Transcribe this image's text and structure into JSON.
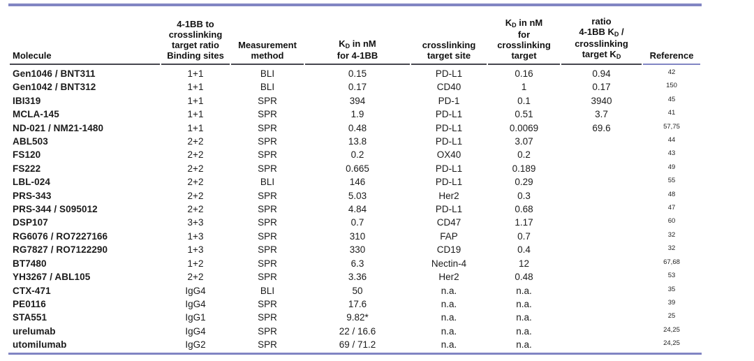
{
  "page": {
    "rule_color": "#8185c3",
    "header_rule_color": "#46464f"
  },
  "table": {
    "headers": {
      "molecule": "Molecule",
      "binding": {
        "lines": [
          "4-1BB to",
          "crosslinking",
          "target ratio",
          "Binding sites"
        ]
      },
      "method": {
        "lines": [
          "Measurement",
          "method"
        ]
      },
      "kd_41bb": {
        "k": "K",
        "sub": "D",
        "rest": " in nM",
        "line2": "for 4-1BB"
      },
      "site": {
        "lines": [
          "crosslinking",
          "target site"
        ]
      },
      "kd_xlink": {
        "k": "K",
        "sub": "D",
        "rest": " in nM",
        "l2": "for",
        "l3": "crosslinking",
        "l4": "target"
      },
      "ratio": {
        "line1": "ratio",
        "line2a": "4-1BB K",
        "line2sub": "D",
        "line2b": " /",
        "line3": "crosslinking",
        "line4a": "target K",
        "line4sub": "D"
      },
      "reference": "Reference"
    },
    "rows": [
      {
        "molecule": "Gen1046 / BNT311",
        "binding": "1+1",
        "method": "BLI",
        "kd_41bb": "0.15",
        "site": "PD-L1",
        "kd_xlink": "0.16",
        "ratio": "0.94",
        "reference": "42"
      },
      {
        "molecule": "Gen1042 / BNT312",
        "binding": "1+1",
        "method": "BLI",
        "kd_41bb": "0.17",
        "site": "CD40",
        "kd_xlink": "1",
        "ratio": "0.17",
        "reference": "150"
      },
      {
        "molecule": "IBI319",
        "binding": "1+1",
        "method": "SPR",
        "kd_41bb": "394",
        "site": "PD-1",
        "kd_xlink": "0.1",
        "ratio": "3940",
        "reference": "45"
      },
      {
        "molecule": "MCLA-145",
        "binding": "1+1",
        "method": "SPR",
        "kd_41bb": "1.9",
        "site": "PD-L1",
        "kd_xlink": "0.51",
        "ratio": "3.7",
        "reference": "41"
      },
      {
        "molecule": "ND-021 / NM21-1480",
        "binding": "1+1",
        "method": "SPR",
        "kd_41bb": "0.48",
        "site": "PD-L1",
        "kd_xlink": "0.0069",
        "ratio": "69.6",
        "reference": "57,75"
      },
      {
        "molecule": "ABL503",
        "binding": "2+2",
        "method": "SPR",
        "kd_41bb": "13.8",
        "site": "PD-L1",
        "kd_xlink": "3.07",
        "ratio": "",
        "reference": "44"
      },
      {
        "molecule": "FS120",
        "binding": "2+2",
        "method": "SPR",
        "kd_41bb": "0.2",
        "site": "OX40",
        "kd_xlink": "0.2",
        "ratio": "",
        "reference": "43"
      },
      {
        "molecule": "FS222",
        "binding": "2+2",
        "method": "SPR",
        "kd_41bb": "0.665",
        "site": "PD-L1",
        "kd_xlink": "0.189",
        "ratio": "",
        "reference": "49"
      },
      {
        "molecule": "LBL-024",
        "binding": "2+2",
        "method": "BLI",
        "kd_41bb": "146",
        "site": "PD-L1",
        "kd_xlink": "0.29",
        "ratio": "",
        "reference": "55"
      },
      {
        "molecule": "PRS-343",
        "binding": "2+2",
        "method": "SPR",
        "kd_41bb": "5.03",
        "site": "Her2",
        "kd_xlink": "0.3",
        "ratio": "",
        "reference": "48"
      },
      {
        "molecule": "PRS-344 / S095012",
        "binding": "2+2",
        "method": "SPR",
        "kd_41bb": "4.84",
        "site": "PD-L1",
        "kd_xlink": "0.68",
        "ratio": "",
        "reference": "47"
      },
      {
        "molecule": "DSP107",
        "binding": "3+3",
        "method": "SPR",
        "kd_41bb": "0.7",
        "site": "CD47",
        "kd_xlink": "1.17",
        "ratio": "",
        "reference": "60"
      },
      {
        "molecule": "RG6076 / RO7227166",
        "binding": "1+3",
        "method": "SPR",
        "kd_41bb": "310",
        "site": "FAP",
        "kd_xlink": "0.7",
        "ratio": "",
        "reference": "32"
      },
      {
        "molecule": "RG7827 / RO7122290",
        "binding": "1+3",
        "method": "SPR",
        "kd_41bb": "330",
        "site": "CD19",
        "kd_xlink": "0.4",
        "ratio": "",
        "reference": "32"
      },
      {
        "molecule": "BT7480",
        "binding": "1+2",
        "method": "SPR",
        "kd_41bb": "6.3",
        "site": "Nectin-4",
        "kd_xlink": "12",
        "ratio": "",
        "reference": "67,68"
      },
      {
        "molecule": "YH3267 / ABL105",
        "binding": "2+2",
        "method": "SPR",
        "kd_41bb": "3.36",
        "site": "Her2",
        "kd_xlink": "0.48",
        "ratio": "",
        "reference": "53"
      },
      {
        "molecule": "CTX-471",
        "binding": "IgG4",
        "method": "BLI",
        "kd_41bb": "50",
        "site": "n.a.",
        "kd_xlink": "n.a.",
        "ratio": "",
        "reference": "35"
      },
      {
        "molecule": "PE0116",
        "binding": "IgG4",
        "method": "SPR",
        "kd_41bb": "17.6",
        "site": "n.a.",
        "kd_xlink": "n.a.",
        "ratio": "",
        "reference": "39"
      },
      {
        "molecule": "STA551",
        "binding": "IgG1",
        "method": "SPR",
        "kd_41bb": "9.82*",
        "site": "n.a.",
        "kd_xlink": "n.a.",
        "ratio": "",
        "reference": "25"
      },
      {
        "molecule": "urelumab",
        "binding": "IgG4",
        "method": "SPR",
        "kd_41bb": "22 / 16.6",
        "site": "n.a.",
        "kd_xlink": "n.a.",
        "ratio": "",
        "reference": "24,25"
      },
      {
        "molecule": "utomilumab",
        "binding": "IgG2",
        "method": "SPR",
        "kd_41bb": "69 / 71.2",
        "site": "n.a.",
        "kd_xlink": "n.a.",
        "ratio": "",
        "reference": "24,25"
      }
    ]
  }
}
